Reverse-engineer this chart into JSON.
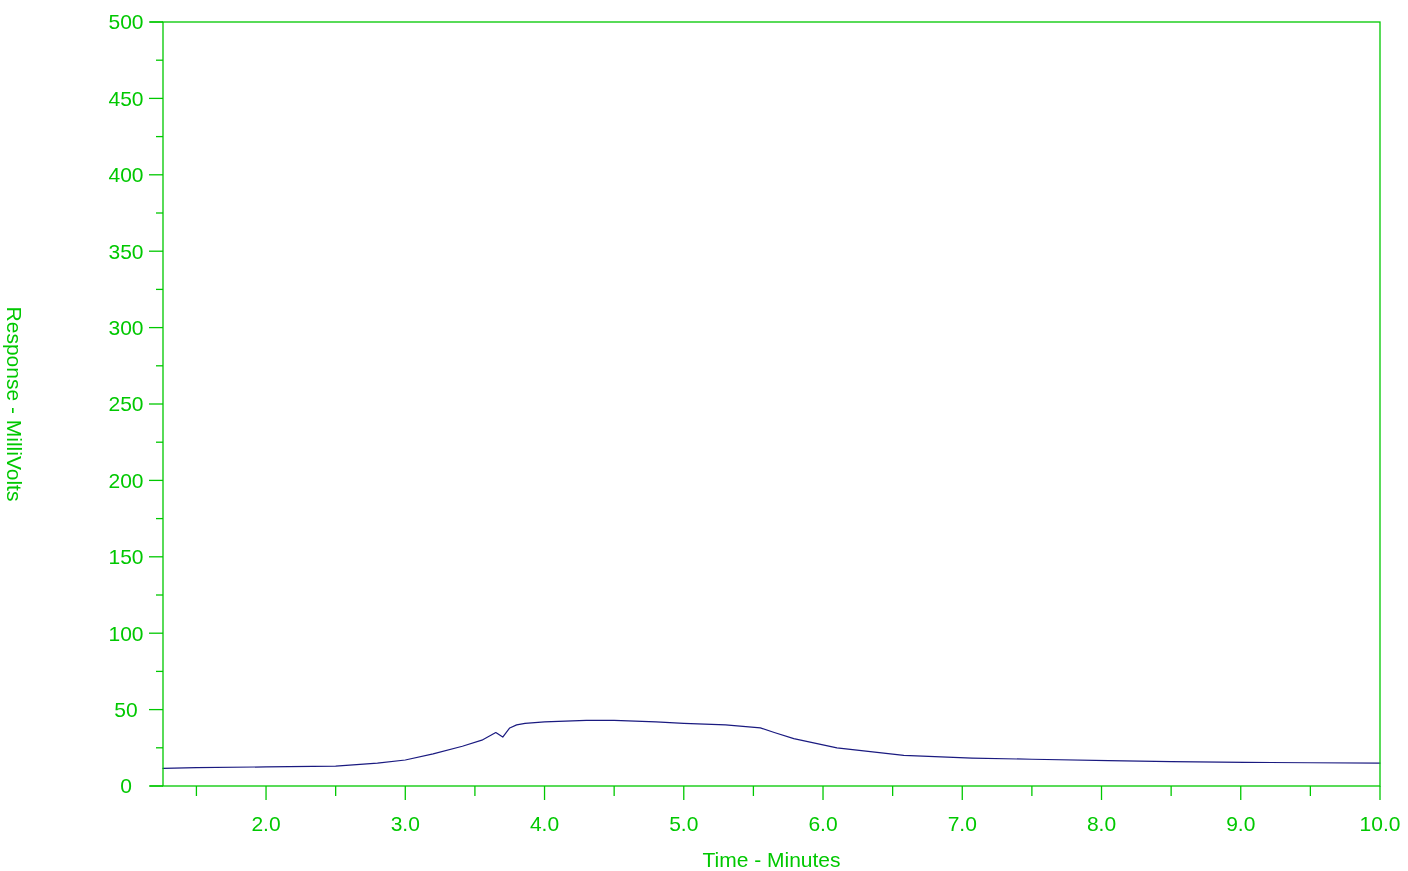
{
  "chart_data": {
    "type": "line",
    "xlabel": "Time - Minutes",
    "ylabel": "Response - MilliVolts",
    "xlim": [
      1.26,
      10.0
    ],
    "ylim": [
      0,
      500
    ],
    "xticks": [
      {
        "value": 1.5,
        "label": null
      },
      {
        "value": 2.0,
        "label": "2.0"
      },
      {
        "value": 2.5,
        "label": null
      },
      {
        "value": 3.0,
        "label": "3.0"
      },
      {
        "value": 3.5,
        "label": null
      },
      {
        "value": 4.0,
        "label": "4.0"
      },
      {
        "value": 4.5,
        "label": null
      },
      {
        "value": 5.0,
        "label": "5.0"
      },
      {
        "value": 5.5,
        "label": null
      },
      {
        "value": 6.0,
        "label": "6.0"
      },
      {
        "value": 6.5,
        "label": null
      },
      {
        "value": 7.0,
        "label": "7.0"
      },
      {
        "value": 7.5,
        "label": null
      },
      {
        "value": 8.0,
        "label": "8.0"
      },
      {
        "value": 8.5,
        "label": null
      },
      {
        "value": 9.0,
        "label": "9.0"
      },
      {
        "value": 9.5,
        "label": null
      },
      {
        "value": 10.0,
        "label": "10.0"
      }
    ],
    "yticks": [
      0,
      {
        "value": 25,
        "label": null
      },
      50,
      {
        "value": 75,
        "label": null
      },
      100,
      {
        "value": 125,
        "label": null
      },
      150,
      {
        "value": 175,
        "label": null
      },
      200,
      {
        "value": 225,
        "label": null
      },
      250,
      {
        "value": 275,
        "label": null
      },
      300,
      {
        "value": 325,
        "label": null
      },
      350,
      {
        "value": 375,
        "label": null
      },
      400,
      {
        "value": 425,
        "label": null
      },
      450,
      {
        "value": 475,
        "label": null
      },
      500
    ],
    "grid": false,
    "marker": "none",
    "line_style": "solid",
    "series": [
      {
        "color": "#1a1a80",
        "x": [
          1.26,
          1.5,
          2.0,
          2.5,
          2.8,
          3.0,
          3.2,
          3.41,
          3.55,
          3.65,
          3.7,
          3.75,
          3.8,
          3.86,
          4.0,
          4.3,
          4.5,
          4.8,
          5.0,
          5.3,
          5.55,
          5.65,
          5.79,
          6.1,
          6.58,
          7.07,
          7.5,
          8.05,
          8.5,
          9.03,
          9.5,
          10.0
        ],
        "values": [
          11.5,
          12,
          12.5,
          13,
          15,
          17,
          21,
          26,
          30,
          35,
          32,
          38,
          40,
          41,
          42,
          43,
          43,
          42,
          41,
          40,
          38,
          35,
          31,
          25,
          20,
          18.3,
          17.5,
          16.6,
          16,
          15.5,
          15.2,
          15
        ]
      }
    ]
  }
}
